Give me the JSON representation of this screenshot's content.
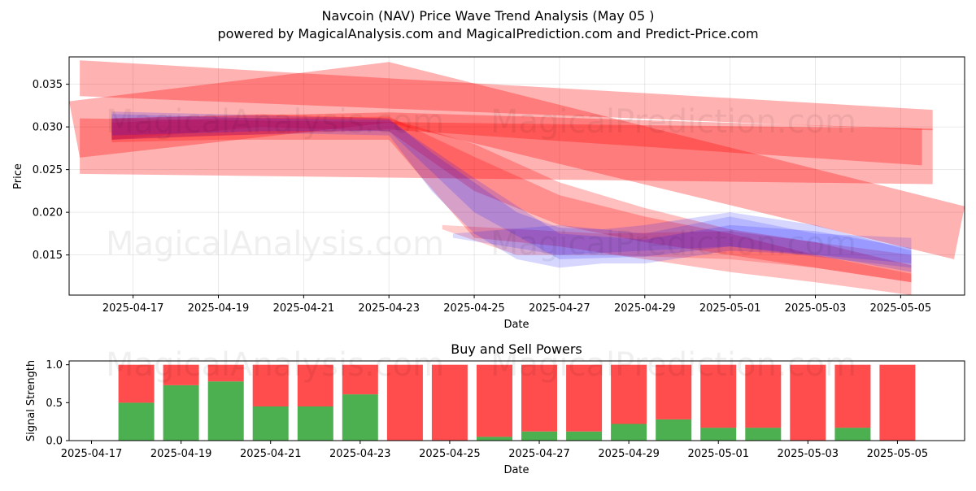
{
  "header": {
    "title": "Navcoin (NAV) Price Wave Trend Analysis (May 05 )",
    "subtitle": "powered by MagicalAnalysis.com and MagicalPrediction.com and Predict-Price.com"
  },
  "watermarks": [
    "MagicalAnalysis.com",
    "MagicalPrediction.com"
  ],
  "colors": {
    "red": "#ff0000",
    "blue": "#0000ff",
    "green": "#4caf50",
    "bar_red": "#ff4c4c"
  },
  "chart_data": [
    {
      "type": "area",
      "title": "",
      "xlabel": "Date",
      "ylabel": "Price",
      "xlim": [
        "2025-04-15T12:00",
        "2025-05-06T12:00"
      ],
      "ylim": [
        0.0103,
        0.0382
      ],
      "x_ticks": [
        "2025-04-17",
        "2025-04-19",
        "2025-04-21",
        "2025-04-23",
        "2025-04-25",
        "2025-04-27",
        "2025-04-29",
        "2025-05-01",
        "2025-05-03",
        "2025-05-05"
      ],
      "y_ticks": [
        "0.015",
        "0.020",
        "0.025",
        "0.030",
        "0.035"
      ],
      "y_tick_values": [
        0.015,
        0.02,
        0.025,
        0.03,
        0.035
      ],
      "grid": true,
      "bands": [
        {
          "color": "red",
          "opacity": 0.3,
          "upper": [
            [
              "2025-04-15T18:00",
              0.0378
            ],
            [
              "2025-05-05T18:00",
              0.032
            ]
          ],
          "lower": [
            [
              "2025-04-15T18:00",
              0.0336
            ],
            [
              "2025-05-05T18:00",
              0.0296
            ]
          ]
        },
        {
          "color": "red",
          "opacity": 0.3,
          "upper": [
            [
              "2025-04-15T12:00",
              0.033
            ],
            [
              "2025-04-23T00:00",
              0.0376
            ],
            [
              "2025-05-06T12:00",
              0.0207
            ]
          ],
          "lower": [
            [
              "2025-04-15T18:00",
              0.0264
            ],
            [
              "2025-04-23T00:00",
              0.0305
            ],
            [
              "2025-05-06T06:00",
              0.0145
            ]
          ]
        },
        {
          "color": "red",
          "opacity": 0.3,
          "upper": [
            [
              "2025-04-15T18:00",
              0.031
            ],
            [
              "2025-05-05T18:00",
              0.0298
            ]
          ],
          "lower": [
            [
              "2025-04-15T18:00",
              0.0245
            ],
            [
              "2025-05-05T18:00",
              0.0233
            ]
          ]
        },
        {
          "color": "red",
          "opacity": 0.3,
          "upper": [
            [
              "2025-04-16T12:00",
              0.031
            ],
            [
              "2025-04-23T00:00",
              0.0317
            ],
            [
              "2025-05-05T12:00",
              0.0298
            ]
          ],
          "lower": [
            [
              "2025-04-16T12:00",
              0.0285
            ],
            [
              "2025-04-23T00:00",
              0.0297
            ],
            [
              "2025-05-05T12:00",
              0.0255
            ]
          ]
        },
        {
          "color": "red",
          "opacity": 0.25,
          "upper": [
            [
              "2025-04-16T12:00",
              0.0305
            ],
            [
              "2025-04-19T00:00",
              0.031
            ],
            [
              "2025-04-23T00:00",
              0.0312
            ],
            [
              "2025-04-25T00:00",
              0.0265
            ],
            [
              "2025-04-27T00:00",
              0.022
            ],
            [
              "2025-04-29T00:00",
              0.0195
            ],
            [
              "2025-05-01T00:00",
              0.0175
            ],
            [
              "2025-05-03T00:00",
              0.015
            ],
            [
              "2025-05-05T06:00",
              0.0128
            ]
          ],
          "lower": [
            [
              "2025-05-05T06:00",
              0.0103
            ],
            [
              "2025-05-03T00:00",
              0.0118
            ],
            [
              "2025-05-01T00:00",
              0.013
            ],
            [
              "2025-04-29T00:00",
              0.0145
            ],
            [
              "2025-04-27T00:00",
              0.016
            ],
            [
              "2025-04-25T00:00",
              0.017
            ],
            [
              "2025-04-23T00:00",
              0.0285
            ],
            [
              "2025-04-19T00:00",
              0.0285
            ],
            [
              "2025-04-16T12:00",
              0.0282
            ]
          ]
        },
        {
          "color": "red",
          "opacity": 0.25,
          "upper": [
            [
              "2025-04-16T12:00",
              0.031
            ],
            [
              "2025-04-20T00:00",
              0.0315
            ],
            [
              "2025-04-23T00:00",
              0.031
            ],
            [
              "2025-04-25T00:00",
              0.028
            ],
            [
              "2025-04-27T00:00",
              0.0235
            ],
            [
              "2025-04-29T00:00",
              0.0205
            ],
            [
              "2025-05-01T00:00",
              0.018
            ],
            [
              "2025-05-03T00:00",
              0.0165
            ],
            [
              "2025-05-05T06:00",
              0.0138
            ]
          ],
          "lower": [
            [
              "2025-05-05T06:00",
              0.0118
            ],
            [
              "2025-05-03T00:00",
              0.0135
            ],
            [
              "2025-05-01T00:00",
              0.015
            ],
            [
              "2025-04-29T00:00",
              0.0165
            ],
            [
              "2025-04-27T00:00",
              0.0185
            ],
            [
              "2025-04-25T00:00",
              0.0225
            ],
            [
              "2025-04-23T00:00",
              0.0295
            ],
            [
              "2025-04-20T00:00",
              0.03
            ],
            [
              "2025-04-16T12:00",
              0.0285
            ]
          ]
        },
        {
          "color": "red",
          "opacity": 0.2,
          "upper": [
            [
              "2025-04-24T06:00",
              0.0185
            ],
            [
              "2025-04-28T00:00",
              0.0175
            ],
            [
              "2025-05-01T00:00",
              0.0178
            ],
            [
              "2025-05-03T00:00",
              0.0165
            ],
            [
              "2025-05-05T06:00",
              0.015
            ]
          ],
          "lower": [
            [
              "2025-05-05T06:00",
              0.0118
            ],
            [
              "2025-05-03T00:00",
              0.0135
            ],
            [
              "2025-05-01T00:00",
              0.0145
            ],
            [
              "2025-04-28T00:00",
              0.015
            ],
            [
              "2025-04-26T00:00",
              0.015
            ],
            [
              "2025-04-24T06:00",
              0.018
            ]
          ]
        },
        {
          "color": "blue",
          "opacity": 0.16,
          "upper": [
            [
              "2025-04-16T12:00",
              0.0318
            ],
            [
              "2025-04-19T00:00",
              0.0315
            ],
            [
              "2025-04-21T00:00",
              0.0312
            ],
            [
              "2025-04-23T00:00",
              0.031
            ],
            [
              "2025-04-24T00:00",
              0.027
            ],
            [
              "2025-04-25T00:00",
              0.0235
            ],
            [
              "2025-04-26T00:00",
              0.02
            ],
            [
              "2025-04-27T00:00",
              0.0182
            ],
            [
              "2025-04-28T00:00",
              0.018
            ],
            [
              "2025-04-29T00:00",
              0.0185
            ],
            [
              "2025-05-01T00:00",
              0.02
            ],
            [
              "2025-05-03T00:00",
              0.0185
            ],
            [
              "2025-05-05T06:00",
              0.0155
            ]
          ],
          "lower": [
            [
              "2025-05-05T06:00",
              0.013
            ],
            [
              "2025-05-03T00:00",
              0.015
            ],
            [
              "2025-05-01T00:00",
              0.0155
            ],
            [
              "2025-04-29T00:00",
              0.014
            ],
            [
              "2025-04-28T00:00",
              0.014
            ],
            [
              "2025-04-27T00:00",
              0.0135
            ],
            [
              "2025-04-26T00:00",
              0.0145
            ],
            [
              "2025-04-25T00:00",
              0.0175
            ],
            [
              "2025-04-24T00:00",
              0.0225
            ],
            [
              "2025-04-23T00:00",
              0.029
            ],
            [
              "2025-04-21T00:00",
              0.0292
            ],
            [
              "2025-04-19T00:00",
              0.029
            ],
            [
              "2025-04-16T12:00",
              0.0285
            ]
          ]
        },
        {
          "color": "blue",
          "opacity": 0.16,
          "upper": [
            [
              "2025-04-16T12:00",
              0.0315
            ],
            [
              "2025-04-20T00:00",
              0.031
            ],
            [
              "2025-04-23T00:00",
              0.0308
            ],
            [
              "2025-04-25T00:00",
              0.024
            ],
            [
              "2025-04-27T00:00",
              0.0175
            ],
            [
              "2025-04-29T00:00",
              0.0168
            ],
            [
              "2025-05-01T00:00",
              0.0185
            ],
            [
              "2025-05-03T00:00",
              0.0178
            ],
            [
              "2025-05-05T06:00",
              0.0158
            ]
          ],
          "lower": [
            [
              "2025-05-05T06:00",
              0.014
            ],
            [
              "2025-05-03T00:00",
              0.015
            ],
            [
              "2025-05-01T00:00",
              0.016
            ],
            [
              "2025-04-29T00:00",
              0.0148
            ],
            [
              "2025-04-27T00:00",
              0.0145
            ],
            [
              "2025-04-25T00:00",
              0.02
            ],
            [
              "2025-04-23T00:00",
              0.0295
            ],
            [
              "2025-04-20T00:00",
              0.0295
            ],
            [
              "2025-04-16T12:00",
              0.029
            ]
          ]
        },
        {
          "color": "blue",
          "opacity": 0.14,
          "upper": [
            [
              "2025-04-24T12:00",
              0.0175
            ],
            [
              "2025-04-27T00:00",
              0.0185
            ],
            [
              "2025-04-29T00:00",
              0.0175
            ],
            [
              "2025-05-01T00:00",
              0.0195
            ],
            [
              "2025-05-03T00:00",
              0.0175
            ],
            [
              "2025-05-05T06:00",
              0.017
            ]
          ],
          "lower": [
            [
              "2025-05-05T06:00",
              0.0135
            ],
            [
              "2025-05-03T00:00",
              0.0148
            ],
            [
              "2025-05-01T00:00",
              0.016
            ],
            [
              "2025-04-29T00:00",
              0.0155
            ],
            [
              "2025-04-27T00:00",
              0.015
            ],
            [
              "2025-04-24T12:00",
              0.017
            ]
          ]
        }
      ]
    },
    {
      "type": "bar",
      "title": "Buy and Sell Powers",
      "xlabel": "Date",
      "ylabel": "Signal Strength",
      "xlim": [
        "2025-04-16T12:00",
        "2025-05-06T12:00"
      ],
      "ylim": [
        0,
        1.05
      ],
      "x_ticks": [
        "2025-04-17",
        "2025-04-19",
        "2025-04-21",
        "2025-04-23",
        "2025-04-25",
        "2025-04-27",
        "2025-04-29",
        "2025-05-01",
        "2025-05-03",
        "2025-05-05"
      ],
      "y_ticks": [
        "0.0",
        "0.5",
        "1.0"
      ],
      "y_tick_values": [
        0,
        0.5,
        1.0
      ],
      "grid": false,
      "categories": [
        "2025-04-18",
        "2025-04-19",
        "2025-04-20",
        "2025-04-21",
        "2025-04-22",
        "2025-04-23",
        "2025-04-24",
        "2025-04-25",
        "2025-04-26",
        "2025-04-27",
        "2025-04-28",
        "2025-04-29",
        "2025-04-30",
        "2025-05-01",
        "2025-05-02",
        "2025-05-03",
        "2025-05-04",
        "2025-05-05"
      ],
      "series": [
        {
          "color": "green",
          "values": [
            0.5,
            0.73,
            0.78,
            0.45,
            0.45,
            0.61,
            0.0,
            0.0,
            0.05,
            0.12,
            0.12,
            0.22,
            0.28,
            0.17,
            0.17,
            0.0,
            0.17,
            0.0
          ]
        },
        {
          "color": "bar_red",
          "values": [
            0.5,
            0.27,
            0.22,
            0.55,
            0.55,
            0.39,
            1.0,
            1.0,
            0.95,
            0.88,
            0.88,
            0.78,
            0.72,
            0.83,
            0.83,
            1.0,
            0.83,
            1.0
          ]
        }
      ]
    }
  ]
}
